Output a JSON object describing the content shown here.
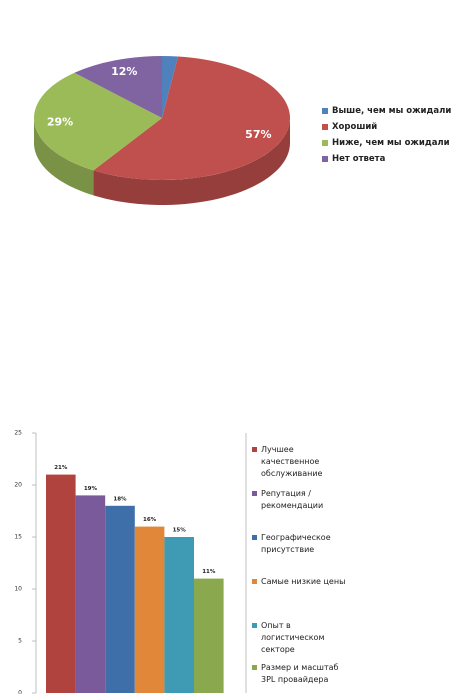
{
  "chart_data": [
    {
      "type": "pie",
      "categories": [
        "Выше, чем мы ожидали",
        "Хороший",
        "Ниже, чем мы ожидали",
        "Нет ответа"
      ],
      "values": [
        2,
        57,
        29,
        12
      ],
      "value_labels": [
        null,
        "57%",
        "29%",
        "12%"
      ],
      "colors": [
        "#4f81bd",
        "#c0504d",
        "#9bbb59",
        "#8064a2"
      ],
      "legend": "right"
    },
    {
      "type": "bar",
      "categories": [
        "Лучшее качественное обслуживание",
        "Репутация /рекомендации",
        "Географическое присутствие",
        "Самые низкие цены",
        "Опыт в логистическом секторе",
        "Размер и масштаб 3PL провайдера"
      ],
      "values": [
        21,
        19,
        18,
        16,
        15,
        11
      ],
      "value_labels": [
        "21%",
        "19%",
        "18%",
        "16%",
        "15%",
        "11%"
      ],
      "colors": [
        "#b1433f",
        "#7a5a9a",
        "#3f6fa8",
        "#e0873a",
        "#3f9ab3",
        "#8aa84e"
      ],
      "ylim": [
        0,
        25
      ],
      "yticks": [
        0,
        5,
        10,
        15,
        20,
        25
      ],
      "legend": "right"
    }
  ]
}
